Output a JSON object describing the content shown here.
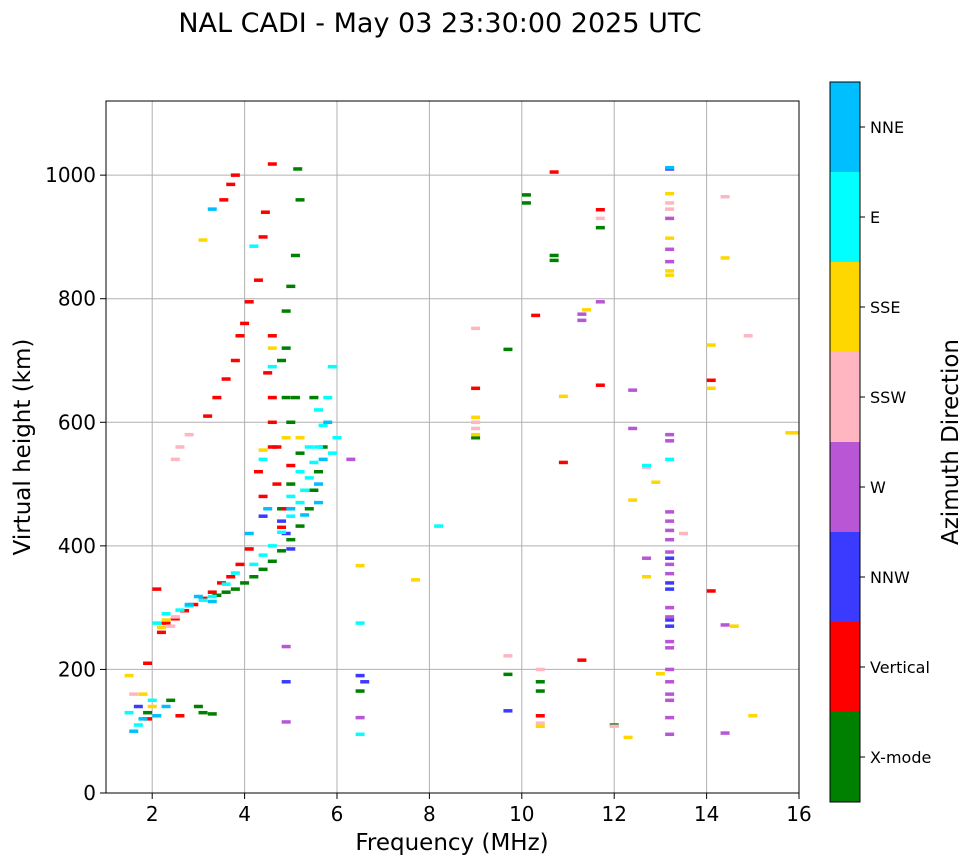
{
  "chart_data": {
    "type": "scatter",
    "title": "NAL CADI - May 03 23:30:00 2025 UTC",
    "xlabel": "Frequency (MHz)",
    "ylabel": "Virtual height (km)",
    "xlim": [
      1,
      16
    ],
    "ylim": [
      0,
      1120
    ],
    "xticks": [
      2,
      4,
      6,
      8,
      10,
      12,
      14,
      16
    ],
    "yticks": [
      0,
      200,
      400,
      600,
      800,
      1000
    ],
    "grid": true,
    "colorbar": {
      "label": "Azimuth Direction",
      "categories": [
        {
          "name": "X-mode",
          "color": "#008000"
        },
        {
          "name": "Vertical",
          "color": "#ff0000"
        },
        {
          "name": "NNW",
          "color": "#3b3bff"
        },
        {
          "name": "W",
          "color": "#b856d6"
        },
        {
          "name": "SSW",
          "color": "#ffb6c1"
        },
        {
          "name": "SSE",
          "color": "#ffd700"
        },
        {
          "name": "E",
          "color": "#00ffff"
        },
        {
          "name": "NNE",
          "color": "#00bfff"
        }
      ]
    },
    "series": [
      {
        "name": "X-mode",
        "points": [
          [
            3.4,
            320
          ],
          [
            3.6,
            325
          ],
          [
            3.8,
            330
          ],
          [
            4.0,
            340
          ],
          [
            4.2,
            350
          ],
          [
            4.4,
            362
          ],
          [
            4.6,
            375
          ],
          [
            4.8,
            392
          ],
          [
            5.0,
            410
          ],
          [
            5.2,
            432
          ],
          [
            5.4,
            460
          ],
          [
            5.5,
            490
          ],
          [
            5.6,
            520
          ],
          [
            5.7,
            560
          ],
          [
            4.8,
            460
          ],
          [
            5.0,
            500
          ],
          [
            5.2,
            550
          ],
          [
            5.0,
            600
          ],
          [
            4.9,
            640
          ],
          [
            4.8,
            700
          ],
          [
            4.9,
            780
          ],
          [
            5.0,
            820
          ],
          [
            5.1,
            870
          ],
          [
            5.2,
            960
          ],
          [
            5.15,
            1010
          ],
          [
            4.9,
            720
          ],
          [
            5.1,
            640
          ],
          [
            3.0,
            140
          ],
          [
            3.1,
            130
          ],
          [
            3.3,
            128
          ],
          [
            2.4,
            150
          ],
          [
            1.9,
            130
          ],
          [
            6.5,
            165
          ],
          [
            9.0,
            575
          ],
          [
            9.7,
            718
          ],
          [
            10.4,
            180
          ],
          [
            10.4,
            165
          ],
          [
            10.1,
            968
          ],
          [
            10.1,
            955
          ],
          [
            10.7,
            870
          ],
          [
            10.7,
            862
          ],
          [
            12.0,
            110
          ],
          [
            11.7,
            915
          ],
          [
            9.7,
            192
          ],
          [
            5.5,
            640
          ]
        ]
      },
      {
        "name": "Vertical",
        "points": [
          [
            2.2,
            260
          ],
          [
            2.3,
            275
          ],
          [
            2.5,
            282
          ],
          [
            2.7,
            295
          ],
          [
            2.9,
            305
          ],
          [
            3.1,
            315
          ],
          [
            3.3,
            325
          ],
          [
            3.5,
            340
          ],
          [
            3.7,
            350
          ],
          [
            3.9,
            370
          ],
          [
            4.1,
            395
          ],
          [
            3.2,
            610
          ],
          [
            3.4,
            640
          ],
          [
            3.6,
            670
          ],
          [
            3.8,
            700
          ],
          [
            3.9,
            740
          ],
          [
            4.0,
            760
          ],
          [
            4.1,
            795
          ],
          [
            3.8,
            1000
          ],
          [
            3.7,
            985
          ],
          [
            3.55,
            960
          ],
          [
            4.3,
            830
          ],
          [
            4.4,
            900
          ],
          [
            4.45,
            940
          ],
          [
            4.6,
            740
          ],
          [
            4.5,
            680
          ],
          [
            4.6,
            640
          ],
          [
            4.3,
            520
          ],
          [
            4.4,
            480
          ],
          [
            4.6,
            560
          ],
          [
            4.6,
            600
          ],
          [
            4.7,
            500
          ],
          [
            4.8,
            430
          ],
          [
            4.9,
            460
          ],
          [
            5.0,
            530
          ],
          [
            4.7,
            560
          ],
          [
            2.6,
            125
          ],
          [
            1.9,
            120
          ],
          [
            2.1,
            330
          ],
          [
            1.9,
            210
          ],
          [
            10.7,
            1005
          ],
          [
            10.3,
            773
          ],
          [
            11.7,
            944
          ],
          [
            11.7,
            660
          ],
          [
            10.9,
            535
          ],
          [
            11.3,
            215
          ],
          [
            14.1,
            668
          ],
          [
            14.1,
            327
          ],
          [
            9.0,
            655
          ],
          [
            10.4,
            125
          ],
          [
            4.6,
            1018
          ]
        ]
      },
      {
        "name": "NNW",
        "points": [
          [
            4.8,
            440
          ],
          [
            4.9,
            420
          ],
          [
            5.0,
            395
          ],
          [
            4.4,
            448
          ],
          [
            6.5,
            190
          ],
          [
            6.6,
            180
          ],
          [
            4.9,
            180
          ],
          [
            13.2,
            1010
          ],
          [
            13.2,
            280
          ],
          [
            13.2,
            270
          ],
          [
            13.2,
            330
          ],
          [
            13.2,
            340
          ],
          [
            13.2,
            380
          ],
          [
            9.7,
            133
          ],
          [
            1.7,
            140
          ]
        ]
      },
      {
        "name": "W",
        "points": [
          [
            13.2,
            930
          ],
          [
            13.2,
            880
          ],
          [
            13.2,
            860
          ],
          [
            13.2,
            580
          ],
          [
            13.2,
            570
          ],
          [
            13.2,
            455
          ],
          [
            13.2,
            440
          ],
          [
            13.2,
            425
          ],
          [
            13.2,
            410
          ],
          [
            13.2,
            390
          ],
          [
            13.2,
            370
          ],
          [
            13.2,
            355
          ],
          [
            13.2,
            300
          ],
          [
            13.2,
            285
          ],
          [
            13.2,
            245
          ],
          [
            13.2,
            235
          ],
          [
            13.2,
            200
          ],
          [
            13.2,
            180
          ],
          [
            13.2,
            160
          ],
          [
            13.2,
            150
          ],
          [
            13.2,
            122
          ],
          [
            13.2,
            95
          ],
          [
            12.4,
            652
          ],
          [
            12.4,
            590
          ],
          [
            12.7,
            380
          ],
          [
            14.4,
            272
          ],
          [
            14.4,
            97
          ],
          [
            11.3,
            765
          ],
          [
            11.3,
            775
          ],
          [
            11.7,
            795
          ],
          [
            6.3,
            540
          ],
          [
            6.5,
            122
          ],
          [
            4.9,
            115
          ],
          [
            4.9,
            237
          ]
        ]
      },
      {
        "name": "SSW",
        "points": [
          [
            2.5,
            540
          ],
          [
            2.6,
            560
          ],
          [
            2.8,
            580
          ],
          [
            2.4,
            270
          ],
          [
            2.5,
            285
          ],
          [
            9.0,
            590
          ],
          [
            9.0,
            752
          ],
          [
            9.0,
            600
          ],
          [
            11.7,
            930
          ],
          [
            13.2,
            955
          ],
          [
            13.2,
            945
          ],
          [
            12.7,
            527
          ],
          [
            13.5,
            420
          ],
          [
            14.4,
            965
          ],
          [
            14.9,
            740
          ],
          [
            12.0,
            108
          ],
          [
            10.4,
            200
          ],
          [
            9.7,
            222
          ],
          [
            10.4,
            113
          ],
          [
            1.6,
            160
          ]
        ]
      },
      {
        "name": "SSE",
        "points": [
          [
            2.3,
            280
          ],
          [
            2.2,
            268
          ],
          [
            2.0,
            140
          ],
          [
            1.8,
            160
          ],
          [
            1.5,
            190
          ],
          [
            3.1,
            895
          ],
          [
            4.4,
            555
          ],
          [
            4.9,
            575
          ],
          [
            5.2,
            575
          ],
          [
            4.6,
            720
          ],
          [
            6.5,
            368
          ],
          [
            7.7,
            345
          ],
          [
            9.0,
            608
          ],
          [
            9.0,
            580
          ],
          [
            10.4,
            108
          ],
          [
            10.9,
            642
          ],
          [
            11.4,
            782
          ],
          [
            12.3,
            90
          ],
          [
            12.4,
            474
          ],
          [
            12.7,
            350
          ],
          [
            12.9,
            503
          ],
          [
            13.0,
            193
          ],
          [
            13.2,
            970
          ],
          [
            13.2,
            898
          ],
          [
            13.2,
            845
          ],
          [
            13.2,
            838
          ],
          [
            14.1,
            725
          ],
          [
            14.1,
            655
          ],
          [
            14.4,
            866
          ],
          [
            14.6,
            270
          ],
          [
            15.0,
            125
          ],
          [
            15.8,
            583
          ],
          [
            16.0,
            583
          ]
        ]
      },
      {
        "name": "E",
        "points": [
          [
            2.1,
            275
          ],
          [
            2.3,
            290
          ],
          [
            2.6,
            296
          ],
          [
            2.8,
            303
          ],
          [
            3.1,
            312
          ],
          [
            3.3,
            318
          ],
          [
            3.6,
            338
          ],
          [
            3.8,
            356
          ],
          [
            4.2,
            370
          ],
          [
            4.4,
            385
          ],
          [
            4.6,
            400
          ],
          [
            4.8,
            422
          ],
          [
            5.0,
            448
          ],
          [
            5.2,
            470
          ],
          [
            5.3,
            490
          ],
          [
            5.4,
            510
          ],
          [
            5.5,
            535
          ],
          [
            5.6,
            560
          ],
          [
            5.7,
            595
          ],
          [
            5.8,
            640
          ],
          [
            5.9,
            690
          ],
          [
            5.6,
            620
          ],
          [
            5.4,
            560
          ],
          [
            5.2,
            520
          ],
          [
            5.0,
            480
          ],
          [
            6.0,
            575
          ],
          [
            5.9,
            550
          ],
          [
            1.5,
            130
          ],
          [
            1.7,
            110
          ],
          [
            2.0,
            150
          ],
          [
            4.2,
            885
          ],
          [
            4.6,
            690
          ],
          [
            6.5,
            95
          ],
          [
            6.5,
            275
          ],
          [
            8.2,
            432
          ],
          [
            12.7,
            530
          ],
          [
            13.2,
            540
          ],
          [
            4.4,
            540
          ]
        ]
      },
      {
        "name": "NNE",
        "points": [
          [
            1.6,
            100
          ],
          [
            1.8,
            120
          ],
          [
            2.1,
            125
          ],
          [
            2.3,
            140
          ],
          [
            2.8,
            305
          ],
          [
            3.0,
            318
          ],
          [
            3.3,
            310
          ],
          [
            3.3,
            945
          ],
          [
            4.1,
            420
          ],
          [
            4.5,
            460
          ],
          [
            5.0,
            460
          ],
          [
            5.3,
            450
          ],
          [
            5.6,
            470
          ],
          [
            5.8,
            600
          ],
          [
            5.7,
            540
          ],
          [
            5.6,
            500
          ],
          [
            13.2,
            1012
          ]
        ]
      }
    ]
  }
}
